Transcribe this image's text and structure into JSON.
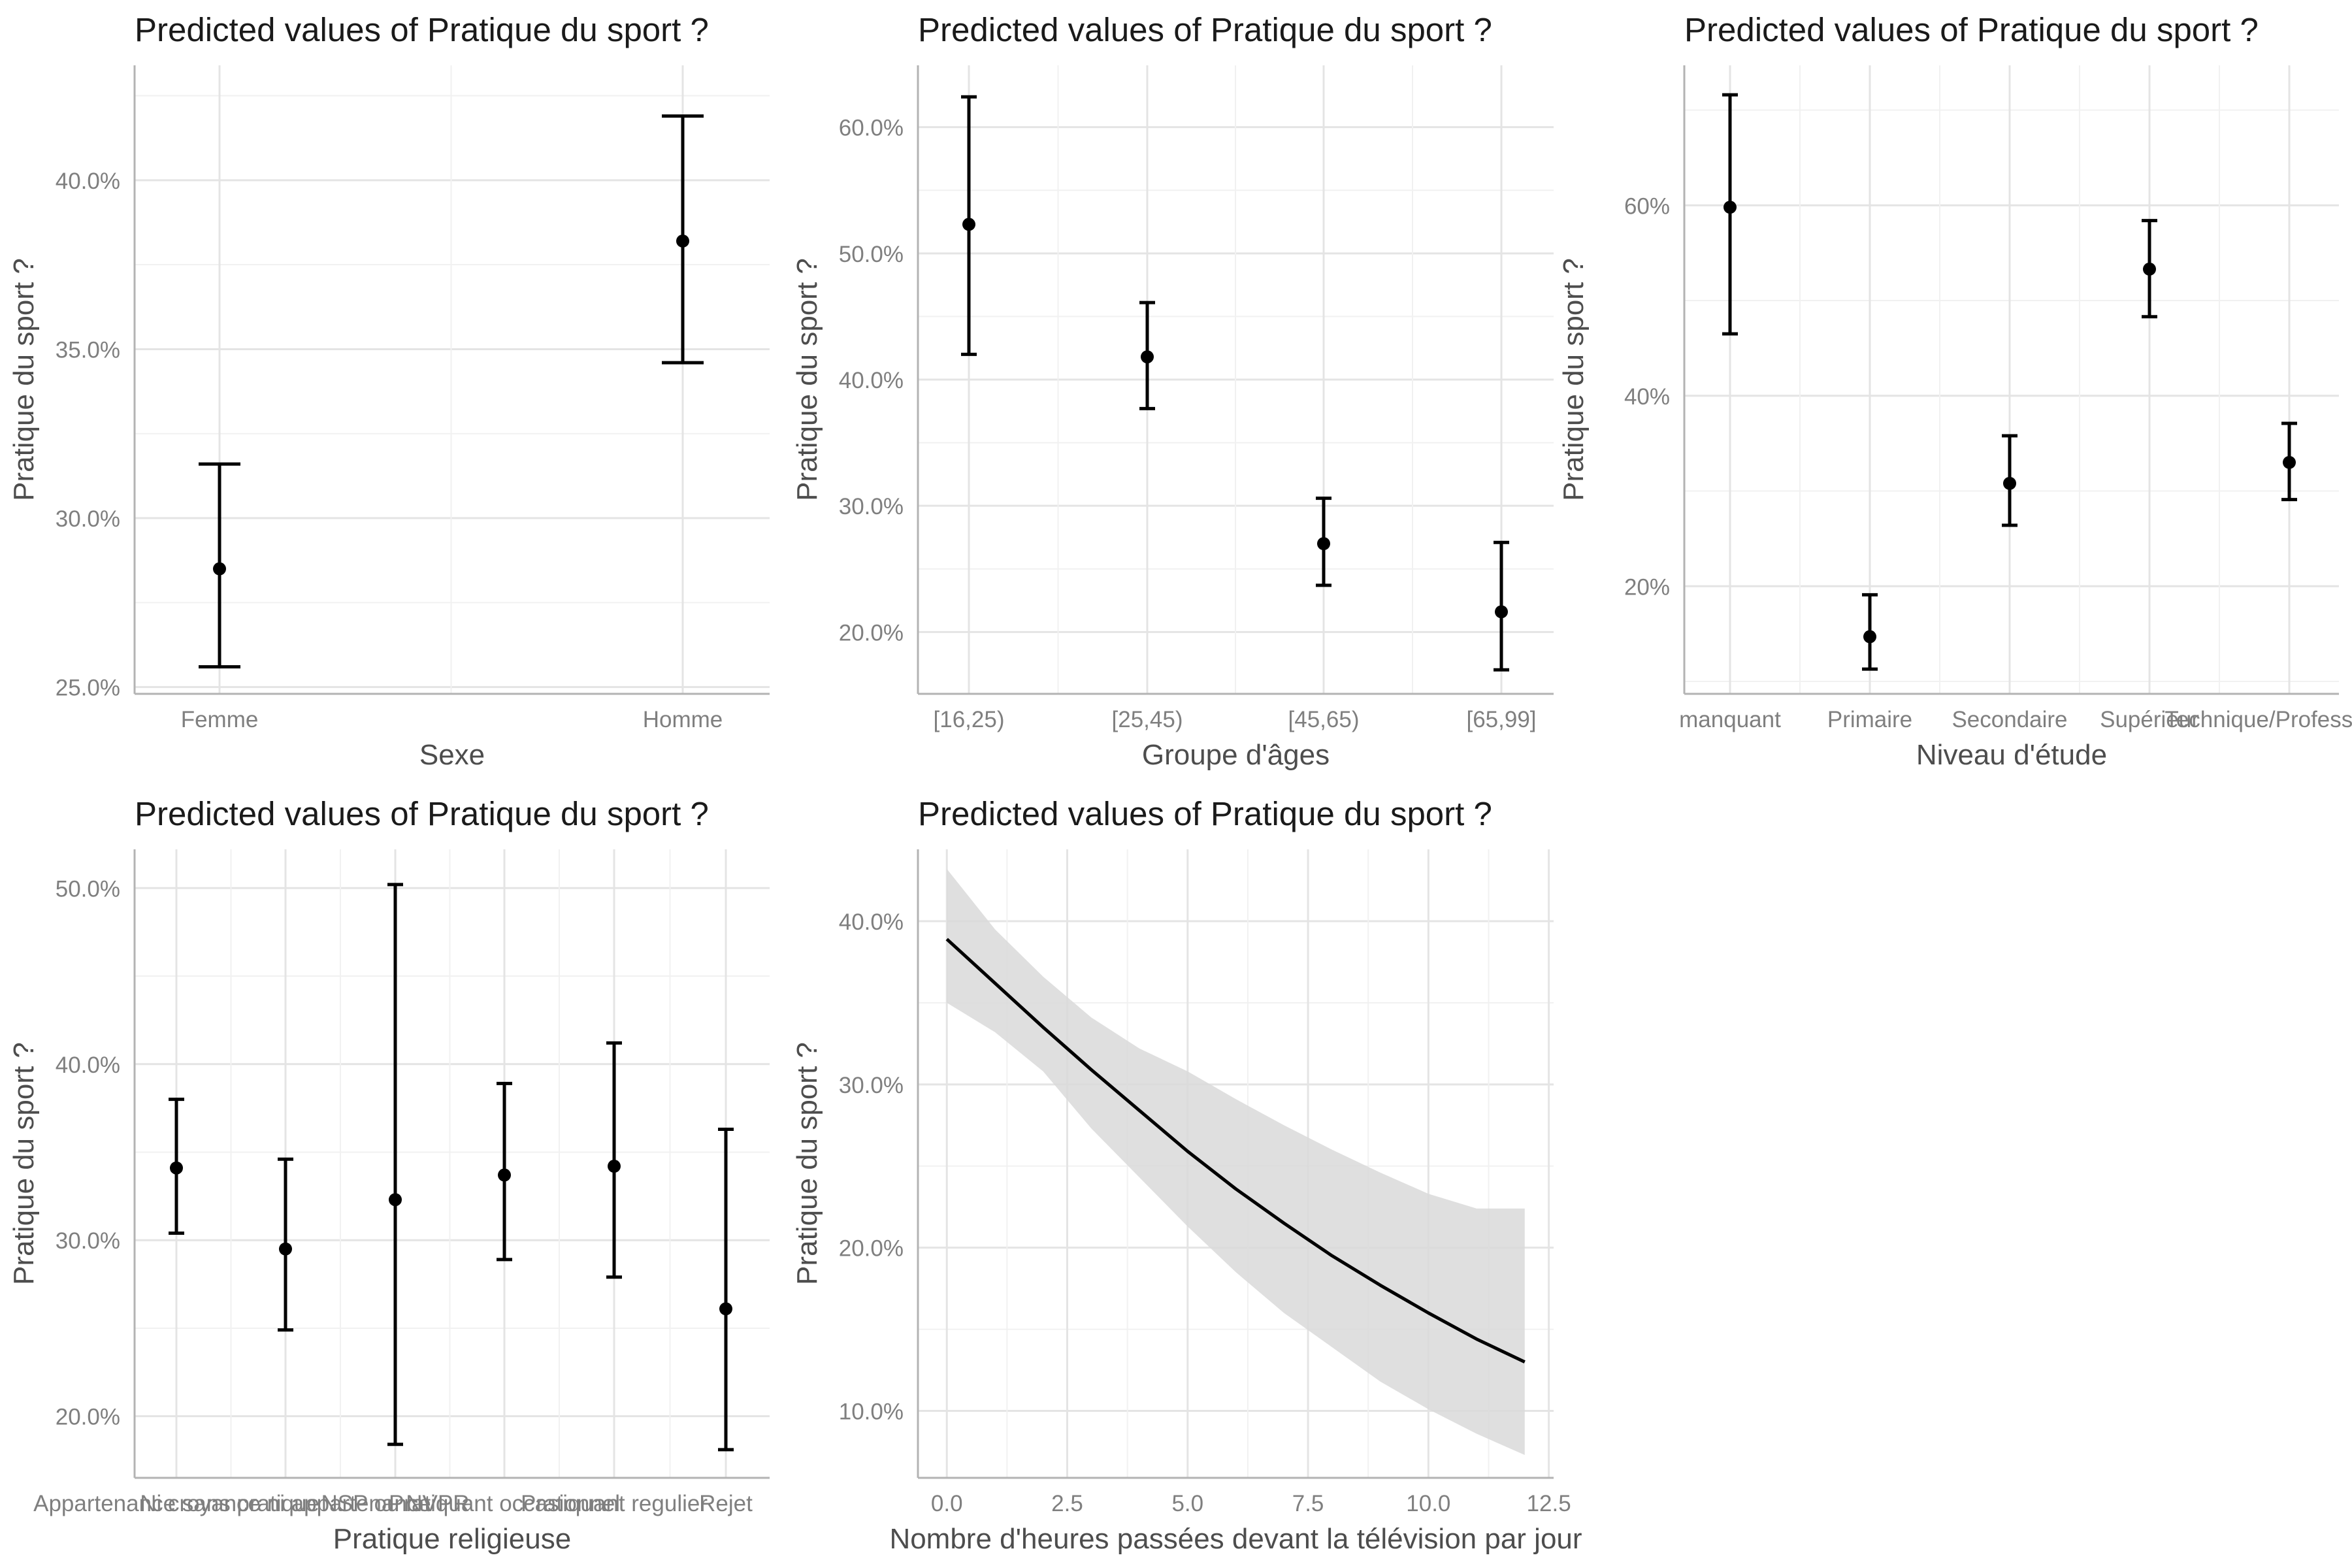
{
  "chart_data": [
    {
      "type": "errorbar",
      "title": "Predicted values of Pratique du sport ?",
      "xlabel": "Sexe",
      "ylabel": "Pratique du sport ?",
      "categories": [
        "Femme",
        "Homme"
      ],
      "estimates": [
        28.5,
        38.2
      ],
      "ci_low": [
        25.6,
        34.6
      ],
      "ci_high": [
        31.6,
        41.9
      ],
      "ylim": [
        24.8,
        43.4
      ],
      "yticks": [
        25,
        30,
        35,
        40
      ],
      "ytick_labels": [
        "25.0%",
        "30.0%",
        "35.0%",
        "40.0%"
      ],
      "grid": true
    },
    {
      "type": "errorbar",
      "title": "Predicted values of Pratique du sport ?",
      "xlabel": "Groupe d'âges",
      "ylabel": "Pratique du sport ?",
      "categories": [
        "[16,25)",
        "[25,45)",
        "[45,65)",
        "[65,99]"
      ],
      "estimates": [
        52.3,
        41.8,
        27.0,
        21.6
      ],
      "ci_low": [
        42.0,
        37.7,
        23.7,
        17.0
      ],
      "ci_high": [
        62.4,
        46.1,
        30.6,
        27.1
      ],
      "ylim": [
        15.1,
        64.9
      ],
      "yticks": [
        20,
        30,
        40,
        50,
        60
      ],
      "ytick_labels": [
        "20.0%",
        "30.0%",
        "40.0%",
        "50.0%",
        "60.0%"
      ],
      "grid": true
    },
    {
      "type": "errorbar",
      "title": "Predicted values of Pratique du sport ?",
      "xlabel": "Niveau d'étude",
      "ylabel": "Pratique du sport ?",
      "categories": [
        "manquant",
        "Primaire",
        "Secondaire",
        "Supérieur",
        "Technique/Professionnel"
      ],
      "estimates": [
        59.8,
        14.7,
        30.8,
        53.3,
        33.0
      ],
      "ci_low": [
        46.5,
        11.3,
        26.4,
        48.3,
        29.1
      ],
      "ci_high": [
        71.6,
        19.1,
        35.8,
        58.4,
        37.1
      ],
      "ylim": [
        8.7,
        74.7
      ],
      "yticks": [
        20,
        40,
        60
      ],
      "ytick_labels": [
        "20%",
        "40%",
        "60%"
      ],
      "grid": true
    },
    {
      "type": "errorbar",
      "title": "Predicted values of Pratique du sport ?",
      "xlabel": "Pratique religieuse",
      "ylabel": "Pratique du sport ?",
      "categories": [
        "Appartenance sans pratique",
        "Ni croyance ni appartenance",
        "NSP ou NVPR",
        "Pratiquant occasionnel",
        "Pratiquant regulier",
        "Rejet"
      ],
      "estimates": [
        34.1,
        29.5,
        32.3,
        33.7,
        34.2,
        26.1
      ],
      "ci_low": [
        30.4,
        24.9,
        18.4,
        28.9,
        27.9,
        18.1
      ],
      "ci_high": [
        38.0,
        34.6,
        50.2,
        38.9,
        41.2,
        36.3
      ],
      "ylim": [
        16.5,
        52.2
      ],
      "yticks": [
        20,
        30,
        40,
        50
      ],
      "ytick_labels": [
        "20.0%",
        "30.0%",
        "40.0%",
        "50.0%"
      ],
      "grid": true
    },
    {
      "type": "line",
      "title": "Predicted values of Pratique du sport ?",
      "xlabel": "Nombre d'heures passées devant la télévision par jour",
      "ylabel": "Pratique du sport ?",
      "x": [
        0,
        1,
        2,
        3,
        4,
        5,
        6,
        7,
        8,
        9,
        10,
        11,
        12
      ],
      "y": [
        38.9,
        36.2,
        33.5,
        30.9,
        28.4,
        25.9,
        23.6,
        21.5,
        19.5,
        17.7,
        16.0,
        14.4,
        13.0
      ],
      "ci_low": [
        35.0,
        33.2,
        30.8,
        27.3,
        24.3,
        21.3,
        18.5,
        16.0,
        13.9,
        11.8,
        10.1,
        8.6,
        7.3
      ],
      "ci_high": [
        43.2,
        39.5,
        36.6,
        34.1,
        32.2,
        30.8,
        29.1,
        27.5,
        26.0,
        24.6,
        23.3,
        22.4,
        22.4
      ],
      "xlim": [
        -0.6,
        12.6
      ],
      "ylim": [
        5.9,
        44.4
      ],
      "xticks": [
        0,
        2.5,
        5,
        7.5,
        10,
        12.5
      ],
      "xtick_labels": [
        "0.0",
        "2.5",
        "5.0",
        "7.5",
        "10.0",
        "12.5"
      ],
      "yticks": [
        10,
        20,
        30,
        40
      ],
      "ytick_labels": [
        "10.0%",
        "20.0%",
        "30.0%",
        "40.0%"
      ],
      "grid": true
    }
  ]
}
